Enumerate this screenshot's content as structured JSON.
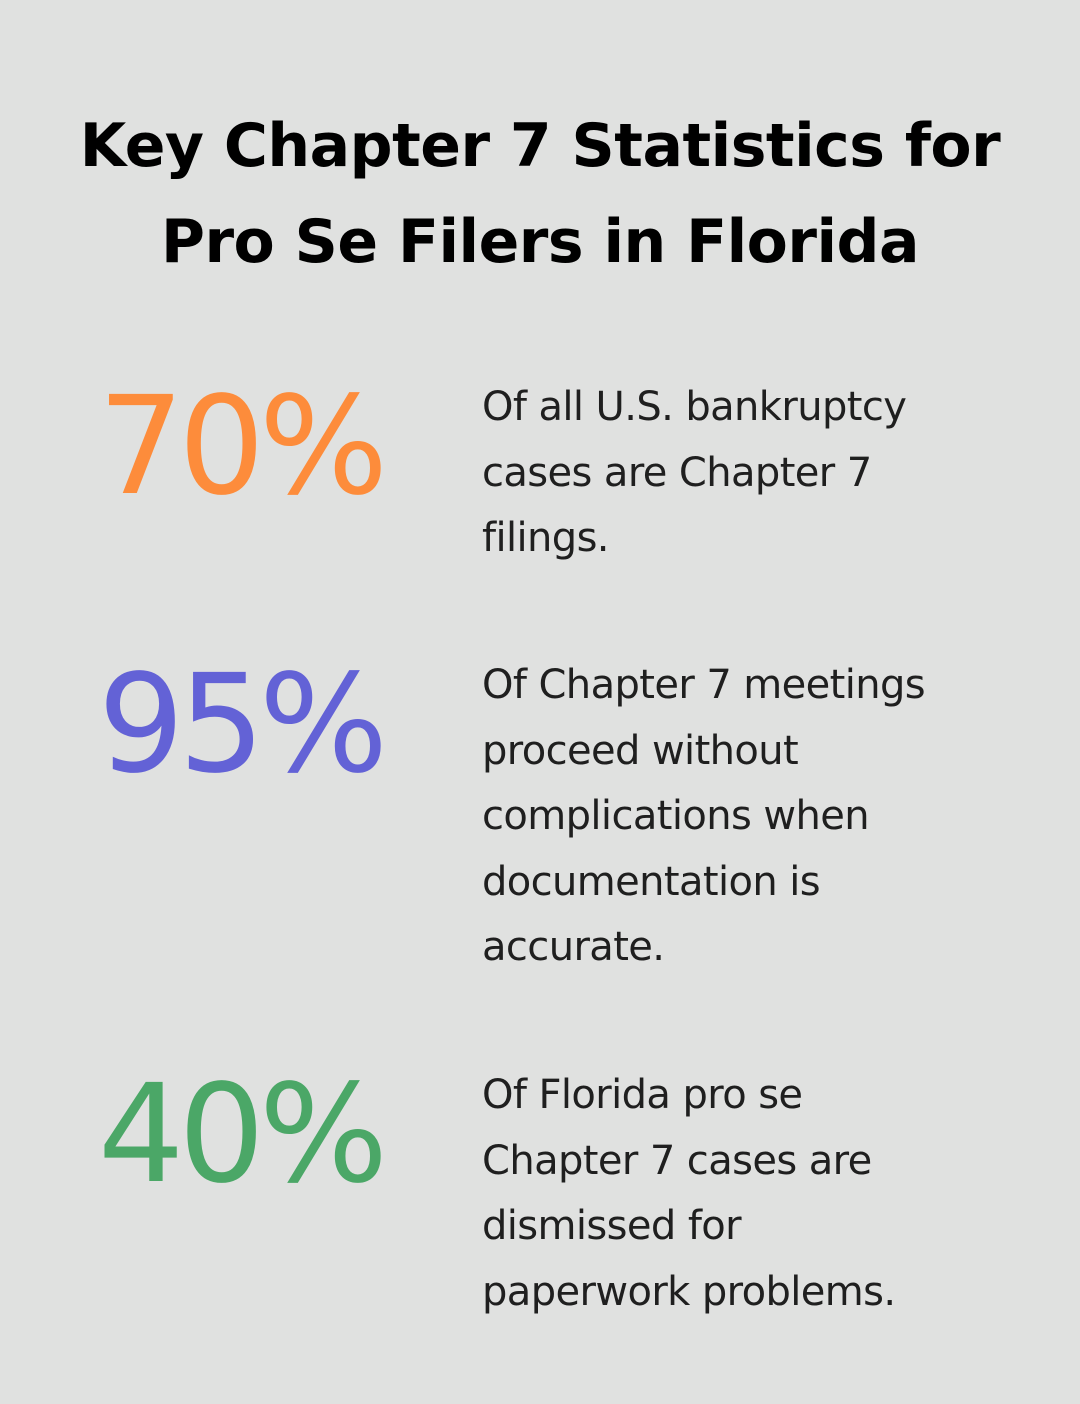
{
  "title": {
    "line1": "Key Chapter 7 Statistics for",
    "line2": "Pro Se Filers in Florida"
  },
  "stats": [
    {
      "value": "70%",
      "color": "#fd8c3b",
      "lines": [
        "Of all U.S. bankruptcy",
        "cases are Chapter 7",
        "filings."
      ]
    },
    {
      "value": "95%",
      "color": "#6362d6",
      "lines": [
        "Of Chapter 7 meetings",
        "proceed without",
        "complications when",
        "documentation is",
        "accurate."
      ]
    },
    {
      "value": "40%",
      "color": "#4ba767",
      "lines": [
        "Of Florida pro se",
        "Chapter 7 cases are",
        "dismissed for",
        "paperwork problems."
      ]
    }
  ]
}
